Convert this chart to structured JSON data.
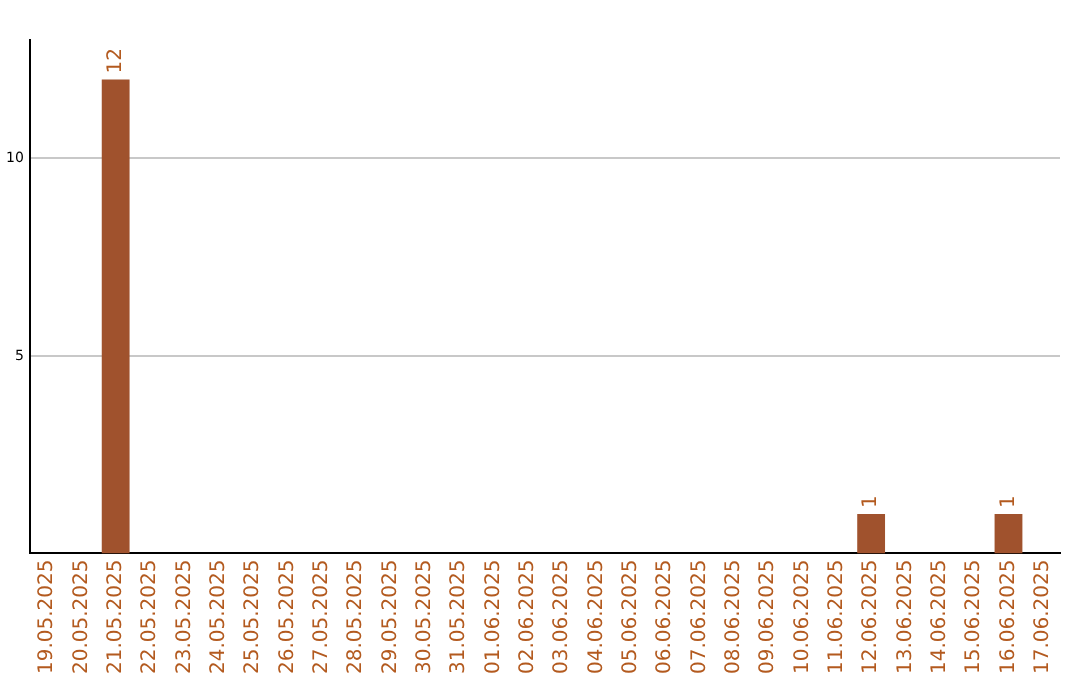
{
  "chart_data": {
    "type": "bar",
    "categories": [
      "19.05.2025",
      "20.05.2025",
      "21.05.2025",
      "22.05.2025",
      "23.05.2025",
      "24.05.2025",
      "25.05.2025",
      "26.05.2025",
      "27.05.2025",
      "28.05.2025",
      "29.05.2025",
      "30.05.2025",
      "31.05.2025",
      "01.06.2025",
      "02.06.2025",
      "03.06.2025",
      "04.06.2025",
      "05.06.2025",
      "06.06.2025",
      "07.06.2025",
      "08.06.2025",
      "09.06.2025",
      "10.06.2025",
      "11.06.2025",
      "12.06.2025",
      "13.06.2025",
      "14.06.2025",
      "15.06.2025",
      "16.06.2025",
      "17.06.2025"
    ],
    "values": [
      0,
      0,
      12,
      0,
      0,
      0,
      0,
      0,
      0,
      0,
      0,
      0,
      0,
      0,
      0,
      0,
      0,
      0,
      0,
      0,
      0,
      0,
      0,
      0,
      1,
      0,
      0,
      0,
      1,
      0
    ],
    "value_labels": [
      null,
      null,
      "12",
      null,
      null,
      null,
      null,
      null,
      null,
      null,
      null,
      null,
      null,
      null,
      null,
      null,
      null,
      null,
      null,
      null,
      null,
      null,
      null,
      null,
      "1",
      null,
      null,
      null,
      "1",
      null
    ],
    "color": "#a0522d",
    "ylim": [
      0,
      13
    ],
    "yticks": [
      5,
      10
    ],
    "grid": "y"
  }
}
